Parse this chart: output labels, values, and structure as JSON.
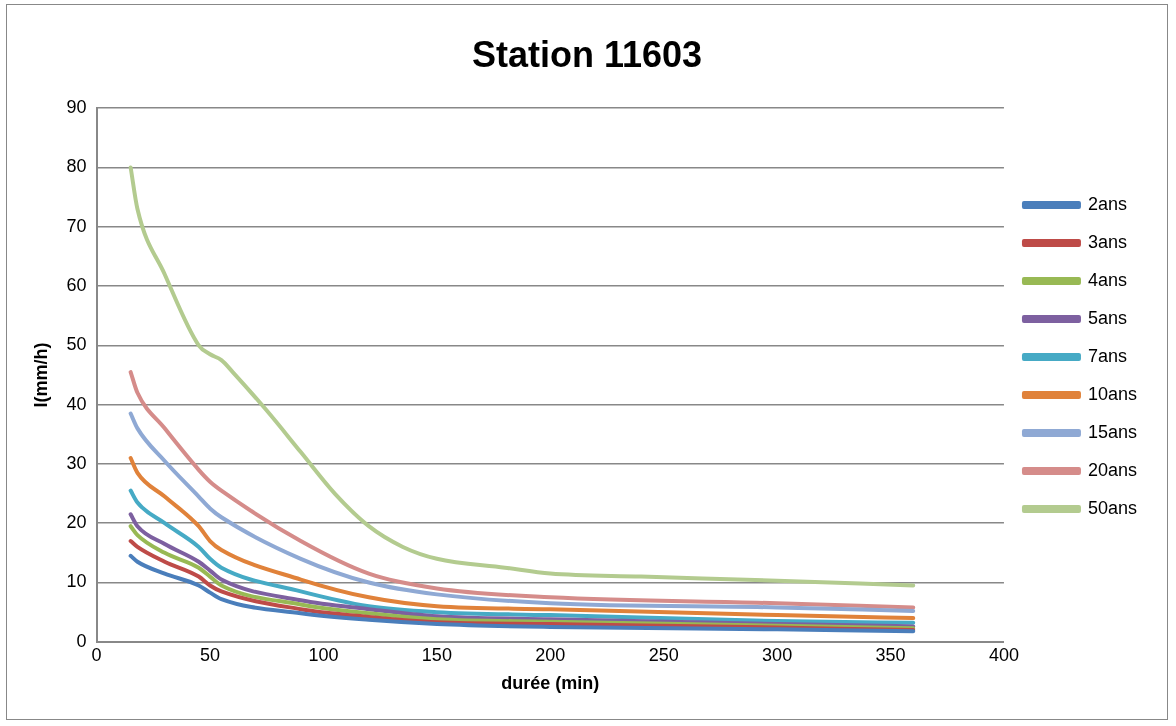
{
  "chart_data": {
    "type": "line",
    "title": "Station 11603",
    "xlabel": "durée (min)",
    "ylabel": "I(mm/h)",
    "x": [
      15,
      18,
      30,
      45,
      50,
      55,
      90,
      120,
      150,
      200,
      300,
      360
    ],
    "xlim": [
      0,
      400
    ],
    "xticks": [
      0,
      50,
      100,
      150,
      200,
      250,
      300,
      350,
      400
    ],
    "ylim": [
      0,
      90
    ],
    "yticks": [
      0,
      10,
      20,
      30,
      40,
      50,
      60,
      70,
      80,
      90
    ],
    "grid": "y",
    "legend": "right",
    "marker": "none",
    "line_style": "solid",
    "series": [
      {
        "name": "2ans",
        "color": "#4a7ebb",
        "values": [
          14.5,
          13.5,
          11.5,
          9.5,
          8.3,
          7.2,
          4.8,
          3.7,
          3,
          2.5,
          2.1,
          1.8
        ]
      },
      {
        "name": "3ans",
        "color": "#be4b48",
        "values": [
          17,
          16,
          13.5,
          11,
          9.5,
          8.5,
          5.5,
          4.2,
          3.3,
          3,
          2.4,
          2
        ]
      },
      {
        "name": "4ans",
        "color": "#98b954",
        "values": [
          19.5,
          18,
          15,
          12.5,
          11,
          9.5,
          6.3,
          4.8,
          3.8,
          3.4,
          2.7,
          2.3
        ]
      },
      {
        "name": "5ans",
        "color": "#7d60a0",
        "values": [
          21.5,
          19.5,
          16.5,
          13.5,
          12,
          10.5,
          7,
          5.5,
          4.3,
          3.8,
          3,
          2.6
        ]
      },
      {
        "name": "7ans",
        "color": "#46aac5",
        "values": [
          25.5,
          23.5,
          20,
          16,
          14,
          12.5,
          8.5,
          6,
          5,
          4.5,
          3.5,
          3.2
        ]
      },
      {
        "name": "10ans",
        "color": "#e0823a",
        "values": [
          31,
          28.5,
          24.5,
          19.5,
          17,
          15.5,
          10.5,
          7.5,
          6,
          5.5,
          4.5,
          4
        ]
      },
      {
        "name": "15ans",
        "color": "#8fa9d4",
        "values": [
          38.5,
          36,
          30.5,
          24.5,
          22.5,
          21,
          14,
          10,
          8,
          6.5,
          5.8,
          5.2
        ]
      },
      {
        "name": "20ans",
        "color": "#d58c8a",
        "values": [
          45.5,
          42,
          36,
          29,
          27,
          25.5,
          17,
          11.5,
          9,
          7.5,
          6.5,
          5.8
        ]
      },
      {
        "name": "50ans",
        "color": "#b3cb8f",
        "x": [
          15,
          18,
          30,
          45,
          50,
          55,
          60,
          75,
          90,
          105,
          120,
          135,
          150,
          180,
          200,
          240,
          300,
          360
        ],
        "values": [
          80,
          73,
          62,
          50,
          48.5,
          47.5,
          45.5,
          39,
          32,
          25,
          19.5,
          16,
          14,
          12.5,
          11.5,
          11,
          10.3,
          9.5
        ]
      }
    ]
  }
}
